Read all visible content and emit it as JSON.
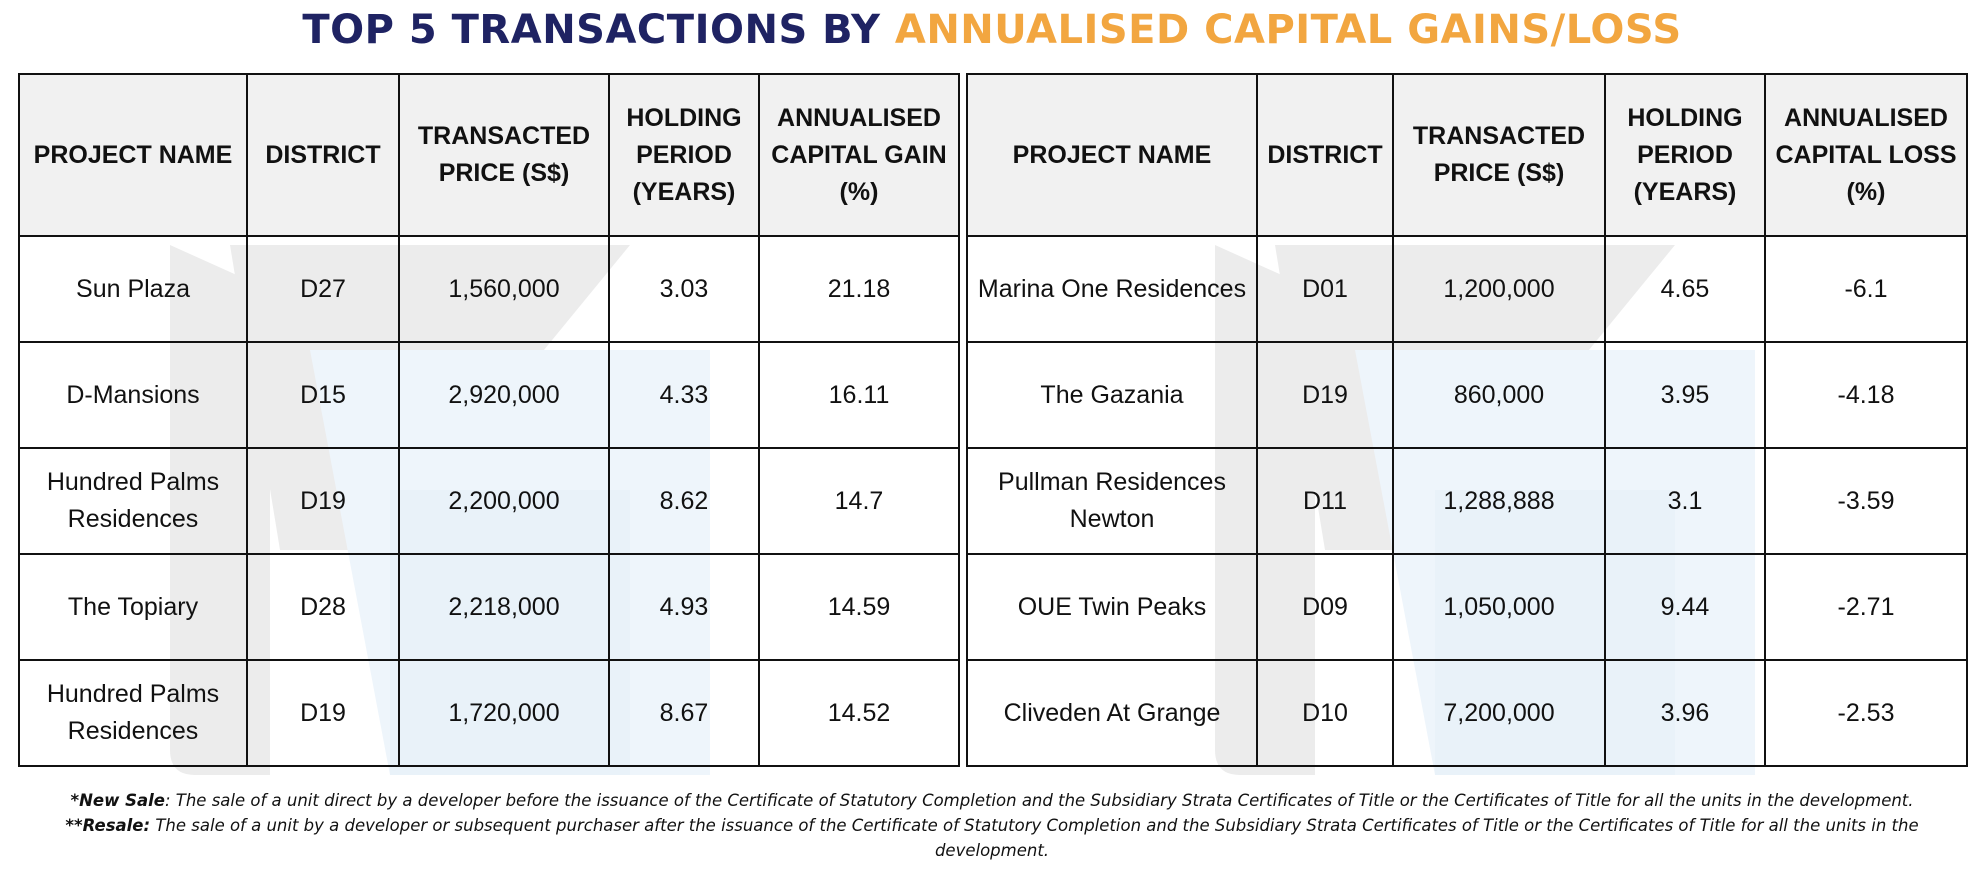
{
  "title": {
    "part1": "TOP 5 TRANSACTIONS BY ",
    "part2": "ANNUALISED CAPITAL GAINS/LOSS"
  },
  "gains_table": {
    "headers": {
      "project": "PROJECT NAME",
      "district": "DISTRICT",
      "price": "TRANSACTED PRICE (S$)",
      "holding": "HOLDING PERIOD (YEARS)",
      "annualised": "ANNUALISED CAPITAL GAIN (%)"
    },
    "rows": [
      {
        "project": "Sun Plaza",
        "district": "D27",
        "price": "1,560,000",
        "holding": "3.03",
        "annualised": "21.18"
      },
      {
        "project": "D-Mansions",
        "district": "D15",
        "price": "2,920,000",
        "holding": "4.33",
        "annualised": "16.11"
      },
      {
        "project": "Hundred Palms Residences",
        "district": "D19",
        "price": "2,200,000",
        "holding": "8.62",
        "annualised": "14.7"
      },
      {
        "project": "The Topiary",
        "district": "D28",
        "price": "2,218,000",
        "holding": "4.93",
        "annualised": "14.59"
      },
      {
        "project": "Hundred Palms Residences",
        "district": "D19",
        "price": "1,720,000",
        "holding": "8.67",
        "annualised": "14.52"
      }
    ]
  },
  "loss_table": {
    "headers": {
      "project": "PROJECT NAME",
      "district": "DISTRICT",
      "price": "TRANSACTED PRICE (S$)",
      "holding": "HOLDING PERIOD (YEARS)",
      "annualised": "ANNUALISED CAPITAL LOSS (%)"
    },
    "rows": [
      {
        "project": "Marina One Residences",
        "district": "D01",
        "price": "1,200,000",
        "holding": "4.65",
        "annualised": "-6.1"
      },
      {
        "project": "The Gazania",
        "district": "D19",
        "price": "860,000",
        "holding": "3.95",
        "annualised": "-4.18"
      },
      {
        "project": "Pullman Residences Newton",
        "district": "D11",
        "price": "1,288,888",
        "holding": "3.1",
        "annualised": "-3.59"
      },
      {
        "project": "OUE Twin Peaks",
        "district": "D09",
        "price": "1,050,000",
        "holding": "9.44",
        "annualised": "-2.71"
      },
      {
        "project": "Cliveden At Grange",
        "district": "D10",
        "price": "7,200,000",
        "holding": "3.96",
        "annualised": "-2.53"
      }
    ]
  },
  "footnotes": {
    "new_sale_term": "*New Sale",
    "new_sale_text": ": The sale of a unit direct by a developer before the issuance of the Certificate of Statutory Completion and the Subsidiary Strata Certificates of Title or the Certificates of Title for all the units in the development.",
    "resale_term": "**Resale:",
    "resale_text": " The sale of a unit by a developer or subsequent purchaser after the issuance of the Certificate of Statutory Completion and the Subsidiary Strata Certificates of Title or the Certificates of Title for all the units in the development."
  },
  "colors": {
    "title_primary": "#1f2363",
    "title_accent": "#f2a640",
    "header_bg": "#f0f0f0",
    "border": "#111111",
    "watermark_grey": "#ebebeb",
    "watermark_blue": "#eef5fb"
  }
}
